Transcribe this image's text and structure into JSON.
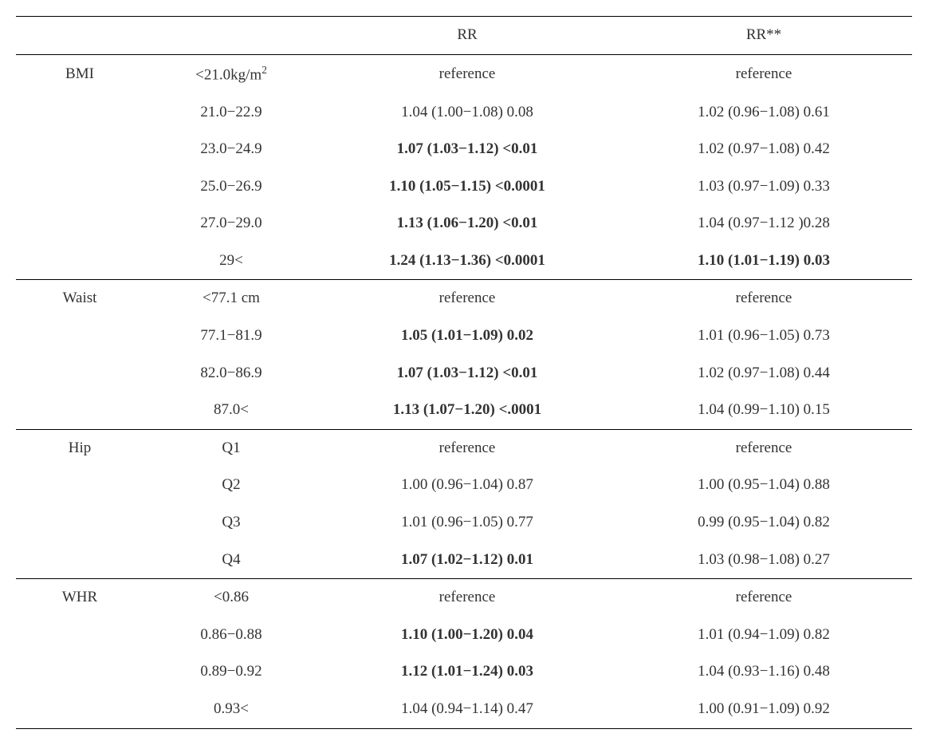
{
  "colors": {
    "rule": "#000000",
    "text": "#333333",
    "background": "#ffffff"
  },
  "typography": {
    "font_family": "Times New Roman / serif",
    "base_size_pt": 14,
    "bold_weight": 700
  },
  "header": {
    "rr": "RR",
    "rr_star": "RR**"
  },
  "groups": [
    {
      "name": "BMI",
      "rows": [
        {
          "level_html": "<21.0kg/m<sup>2</sup>",
          "rr": "reference",
          "rr_bold": false,
          "rr2": "reference",
          "rr2_bold": false
        },
        {
          "level_html": "21.0−22.9",
          "rr": "1.04 (1.00−1.08) 0.08",
          "rr_bold": false,
          "rr2": "1.02 (0.96−1.08) 0.61",
          "rr2_bold": false
        },
        {
          "level_html": "23.0−24.9",
          "rr": "1.07 (1.03−1.12) <0.01",
          "rr_bold": true,
          "rr2": "1.02 (0.97−1.08) 0.42",
          "rr2_bold": false
        },
        {
          "level_html": "25.0−26.9",
          "rr": "1.10 (1.05−1.15) <0.0001",
          "rr_bold": true,
          "rr2": "1.03 (0.97−1.09) 0.33",
          "rr2_bold": false
        },
        {
          "level_html": "27.0−29.0",
          "rr": "1.13 (1.06−1.20) <0.01",
          "rr_bold": true,
          "rr2": "1.04 (0.97−1.12 )0.28",
          "rr2_bold": false
        },
        {
          "level_html": "29<",
          "rr": "1.24 (1.13−1.36) <0.0001",
          "rr_bold": true,
          "rr2": "1.10 (1.01−1.19) 0.03",
          "rr2_bold": true
        }
      ]
    },
    {
      "name": "Waist",
      "rows": [
        {
          "level_html": "<77.1 cm",
          "rr": "reference",
          "rr_bold": false,
          "rr2": "reference",
          "rr2_bold": false
        },
        {
          "level_html": "77.1−81.9",
          "rr": "1.05 (1.01−1.09) 0.02",
          "rr_bold": true,
          "rr2": "1.01 (0.96−1.05) 0.73",
          "rr2_bold": false
        },
        {
          "level_html": "82.0−86.9",
          "rr": "1.07 (1.03−1.12) <0.01",
          "rr_bold": true,
          "rr2": "1.02 (0.97−1.08) 0.44",
          "rr2_bold": false
        },
        {
          "level_html": "87.0<",
          "rr": "1.13 (1.07−1.20) <.0001",
          "rr_bold": true,
          "rr2": "1.04 (0.99−1.10) 0.15",
          "rr2_bold": false
        }
      ]
    },
    {
      "name": "Hip",
      "rows": [
        {
          "level_html": "Q1",
          "rr": "reference",
          "rr_bold": false,
          "rr2": "reference",
          "rr2_bold": false
        },
        {
          "level_html": "Q2",
          "rr": "1.00 (0.96−1.04) 0.87",
          "rr_bold": false,
          "rr2": "1.00 (0.95−1.04) 0.88",
          "rr2_bold": false
        },
        {
          "level_html": "Q3",
          "rr": "1.01 (0.96−1.05) 0.77",
          "rr_bold": false,
          "rr2": "0.99 (0.95−1.04) 0.82",
          "rr2_bold": false
        },
        {
          "level_html": "Q4",
          "rr": "1.07 (1.02−1.12) 0.01",
          "rr_bold": true,
          "rr2": "1.03 (0.98−1.08) 0.27",
          "rr2_bold": false
        }
      ]
    },
    {
      "name": "WHR",
      "rows": [
        {
          "level_html": "<0.86",
          "rr": "reference",
          "rr_bold": false,
          "rr2": "reference",
          "rr2_bold": false
        },
        {
          "level_html": "0.86−0.88",
          "rr": "1.10 (1.00−1.20) 0.04",
          "rr_bold": true,
          "rr2": "1.01 (0.94−1.09) 0.82",
          "rr2_bold": false
        },
        {
          "level_html": "0.89−0.92",
          "rr": "1.12 (1.01−1.24) 0.03",
          "rr_bold": true,
          "rr2": "1.04 (0.93−1.16) 0.48",
          "rr2_bold": false
        },
        {
          "level_html": "0.93<",
          "rr": "1.04 (0.94−1.14) 0.47",
          "rr_bold": false,
          "rr2": "1.00 (0.91−1.09) 0.92",
          "rr2_bold": false
        }
      ]
    }
  ]
}
